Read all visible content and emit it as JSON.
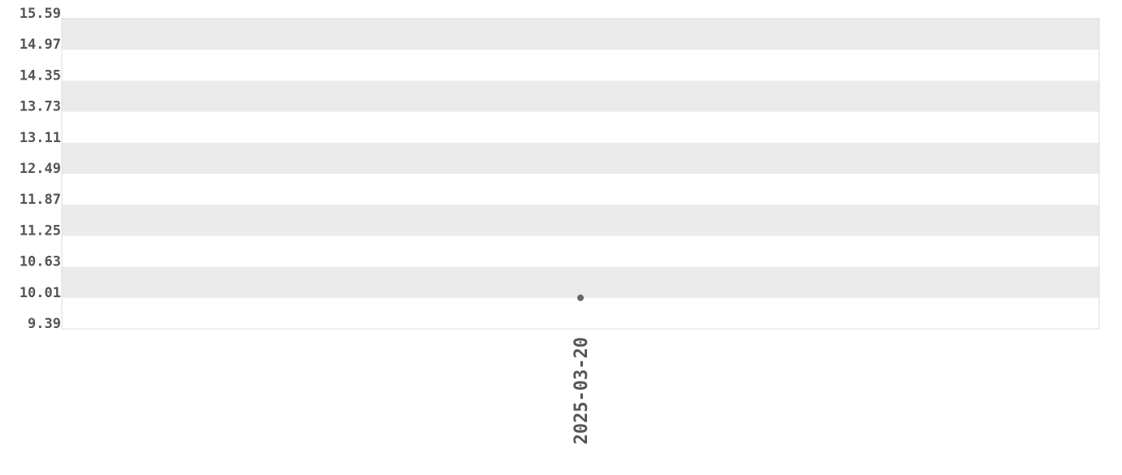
{
  "chart_data": {
    "type": "scatter",
    "title": "",
    "xlabel": "",
    "ylabel": "",
    "x_tick_labels": [
      "2025-03-20"
    ],
    "y_tick_labels": [
      "15.59",
      "14.97",
      "14.35",
      "13.73",
      "13.11",
      "12.49",
      "11.87",
      "11.25",
      "10.63",
      "10.01",
      "9.39"
    ],
    "ylim": [
      9.39,
      15.59
    ],
    "grid": "alternating horizontal bands",
    "points": [
      {
        "x": "2025-03-20",
        "y": 10.01
      }
    ],
    "colors": {
      "band": "#ebebeb",
      "point": "#666666",
      "text": "#555555",
      "border": "#dddddd"
    }
  }
}
